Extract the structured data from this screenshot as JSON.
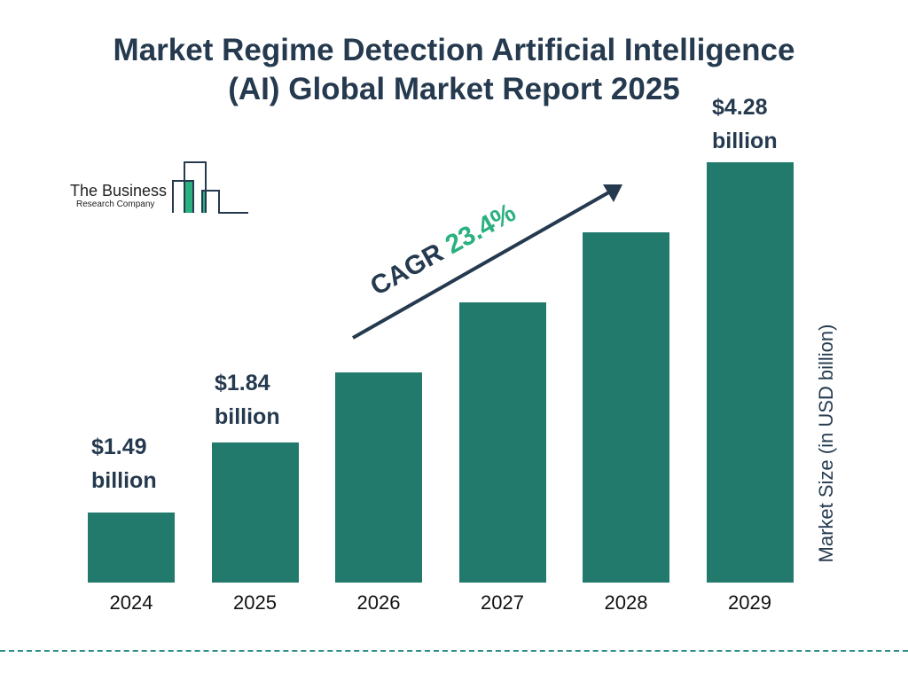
{
  "title_lines": [
    "Market Regime Detection Artificial Intelligence",
    "(AI) Global Market Report 2025"
  ],
  "logo": {
    "line1": "The Business",
    "line2": "Research Company"
  },
  "colors": {
    "bar": "#217a6b",
    "title": "#253a4f",
    "cagr_value": "#2bb07f",
    "divider": "#2b8c82"
  },
  "cagr": {
    "label": "CAGR",
    "value": "23.4%"
  },
  "chart_data": {
    "type": "bar",
    "title": "Market Regime Detection Artificial Intelligence (AI) Global Market Report 2025",
    "categories": [
      "2024",
      "2025",
      "2026",
      "2027",
      "2028",
      "2029"
    ],
    "values": [
      1.49,
      1.84,
      2.27,
      2.8,
      3.46,
      4.28
    ],
    "data_labels": [
      {
        "index": 0,
        "amount": "$1.49",
        "unit": "billion"
      },
      {
        "index": 1,
        "amount": "$1.84",
        "unit": "billion"
      },
      {
        "index": 5,
        "amount": "$4.28",
        "unit": "billion"
      }
    ],
    "ylabel": "Market Size (in USD billion)",
    "xlabel": "",
    "grid": false,
    "legend": "none"
  }
}
